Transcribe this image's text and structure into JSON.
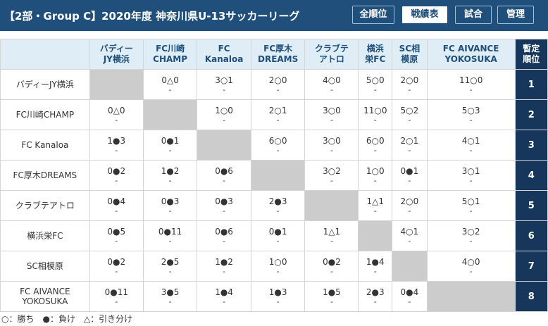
{
  "header": {
    "title": "【2部・Group C】2020年度 神奈川県U-13サッカーリーグ",
    "buttons": [
      {
        "label": "全順位",
        "active": false
      },
      {
        "label": "戦績表",
        "active": true
      },
      {
        "label": "試合",
        "active": false
      },
      {
        "label": "管理",
        "active": false
      }
    ]
  },
  "table": {
    "columns": [
      "バディー\nJY横浜",
      "FC川崎\nCHAMP",
      "FC\nKanaloa",
      "FC厚木\nDREAMS",
      "クラブテ\nアトロ",
      "横浜\n栄FC",
      "SC相\n模原",
      "FC AIVANCE\nYOKOSUKA"
    ],
    "rank_header": "暫定\n順位",
    "rows": [
      {
        "team": "バディーJY横浜",
        "rank": "1",
        "cells": [
          null,
          "0△0",
          "3○1",
          "2○0",
          "4○0",
          "5○0",
          "2○0",
          "11○0"
        ]
      },
      {
        "team": "FC川崎CHAMP",
        "rank": "2",
        "cells": [
          "0△0",
          null,
          "1○0",
          "2○1",
          "3○0",
          "11○0",
          "5○2",
          "5○3"
        ]
      },
      {
        "team": "FC Kanaloa",
        "rank": "3",
        "cells": [
          "1●3",
          "0●1",
          null,
          "6○0",
          "3○0",
          "6○0",
          "2○1",
          "4○1"
        ]
      },
      {
        "team": "FC厚木DREAMS",
        "rank": "4",
        "cells": [
          "0●2",
          "1●2",
          "0●6",
          null,
          "3○2",
          "1○0",
          "0●1",
          "3○1"
        ]
      },
      {
        "team": "クラブテアトロ",
        "rank": "5",
        "cells": [
          "0●4",
          "0●3",
          "0●3",
          "2●3",
          null,
          "1△1",
          "2○0",
          "5○1"
        ]
      },
      {
        "team": "横浜栄FC",
        "rank": "6",
        "cells": [
          "0●5",
          "0●11",
          "0●6",
          "0●1",
          "1△1",
          null,
          "4○1",
          "3○2"
        ]
      },
      {
        "team": "SC相模原",
        "rank": "7",
        "cells": [
          "0●2",
          "2●5",
          "1●2",
          "1○0",
          "0●2",
          "1●4",
          null,
          "4○0"
        ]
      },
      {
        "team": "FC AIVANCE\nYOKOSUKA",
        "rank": "8",
        "cells": [
          "0●11",
          "3●5",
          "1●4",
          "1●3",
          "1●5",
          "2●3",
          "0●4",
          null
        ]
      }
    ],
    "pk_placeholder": "-"
  },
  "legend": "○：勝ち　●：負け　△：引き分け",
  "colors": {
    "header_bg": "#1f4f7a",
    "thead_bg": "#dfedf6",
    "rank_bg": "#16365b",
    "self_cell": "#cccccc"
  }
}
